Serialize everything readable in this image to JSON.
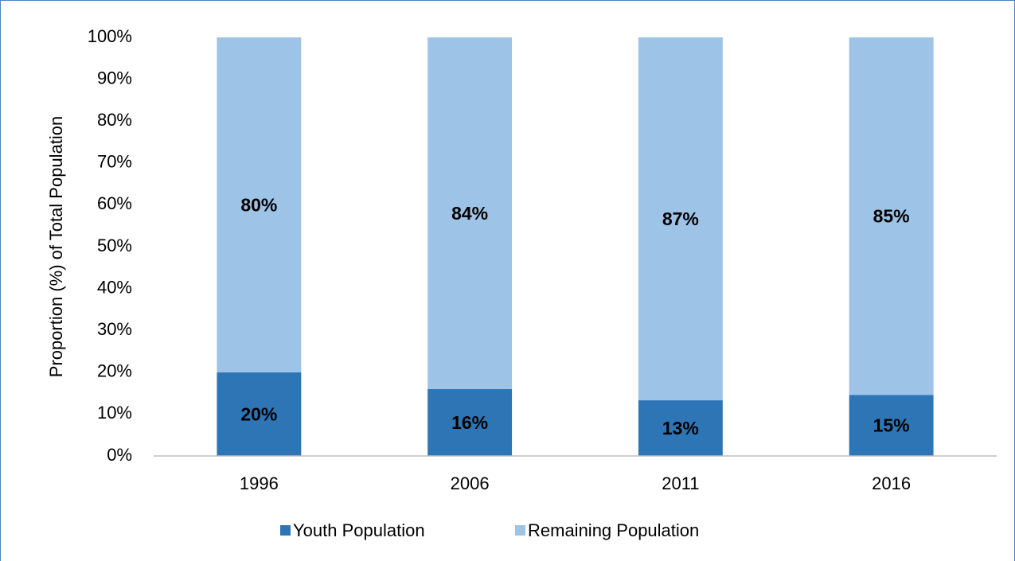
{
  "chart_data": {
    "type": "stacked_bar",
    "y_label": "Proportion (%) of Total Population",
    "categories": [
      "1996",
      "2006",
      "2011",
      "2016"
    ],
    "series": [
      {
        "name": "Youth Population",
        "color": "#2e75b6",
        "values": [
          20,
          16,
          13.3,
          14.6
        ],
        "value_labels": [
          "20%",
          "16%",
          "13%",
          "15%"
        ]
      },
      {
        "name": "Remaining Population",
        "color": "#9dc3e6",
        "values": [
          80,
          84,
          86.7,
          85.4
        ],
        "value_labels": [
          "80%",
          "84%",
          "87%",
          "85%"
        ]
      }
    ],
    "ylim": [
      0,
      100
    ],
    "yticks": [
      {
        "value": 0,
        "label": "0%"
      },
      {
        "value": 10,
        "label": "10%"
      },
      {
        "value": 20,
        "label": "20%"
      },
      {
        "value": 30,
        "label": "30%"
      },
      {
        "value": 40,
        "label": "40%"
      },
      {
        "value": 50,
        "label": "50%"
      },
      {
        "value": 60,
        "label": "60%"
      },
      {
        "value": 70,
        "label": "70%"
      },
      {
        "value": 80,
        "label": "80%"
      },
      {
        "value": 90,
        "label": "90%"
      },
      {
        "value": 100,
        "label": "100%"
      }
    ],
    "grid": false,
    "legend": "bottom"
  }
}
